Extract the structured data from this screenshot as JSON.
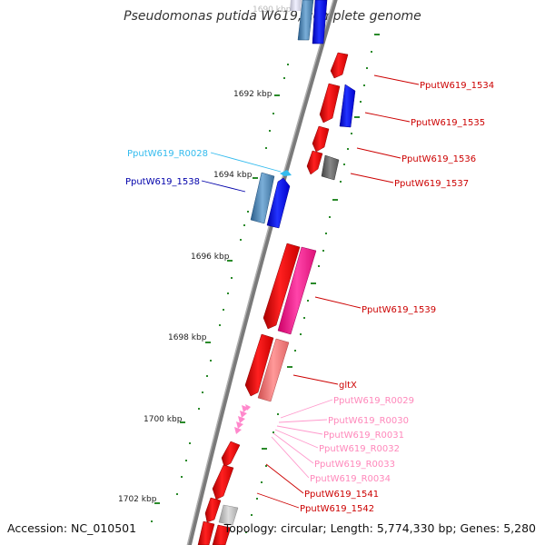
{
  "title": "Pseudomonas putida W619, complete genome",
  "footer": {
    "accession": "Accession: NC_010501",
    "topology": "Topology: circular; Length: 5,774,330 bp; Genes: 5,280"
  },
  "colors": {
    "backbone": "#808080",
    "cds_forward": "#0000ff",
    "cds_reverse": "#ff0000",
    "rna": "#ff99cc",
    "tick": "#228b22"
  },
  "scale_labels": [
    {
      "text": "1690 kbp",
      "faded": true
    },
    {
      "text": "1692 kbp"
    },
    {
      "text": "1694 kbp"
    },
    {
      "text": "1696 kbp"
    },
    {
      "text": "1698 kbp"
    },
    {
      "text": "1700 kbp"
    },
    {
      "text": "1702 kbp"
    }
  ],
  "features": [
    {
      "id": "PputW619_1534",
      "strand": "reverse",
      "color": "#cc0000"
    },
    {
      "id": "PputW619_1535",
      "strand": "reverse",
      "color": "#cc0000"
    },
    {
      "id": "PputW619_1536",
      "strand": "reverse",
      "color": "#cc0000"
    },
    {
      "id": "PputW619_1537",
      "strand": "reverse",
      "color": "#cc0000"
    },
    {
      "id": "PputW619_R0028",
      "strand": "forward",
      "color": "#33bbee"
    },
    {
      "id": "PputW619_1538",
      "strand": "forward",
      "color": "#0000aa"
    },
    {
      "id": "PputW619_1539",
      "strand": "reverse",
      "color": "#cc0000"
    },
    {
      "id": "gltX",
      "strand": "reverse",
      "color": "#cc0000"
    },
    {
      "id": "PputW619_R0029",
      "strand": "reverse",
      "color": "#ff88bb"
    },
    {
      "id": "PputW619_R0030",
      "strand": "reverse",
      "color": "#ff88bb"
    },
    {
      "id": "PputW619_R0031",
      "strand": "reverse",
      "color": "#ff88bb"
    },
    {
      "id": "PputW619_R0032",
      "strand": "reverse",
      "color": "#ff88bb"
    },
    {
      "id": "PputW619_R0033",
      "strand": "reverse",
      "color": "#ff88bb"
    },
    {
      "id": "PputW619_R0034",
      "strand": "reverse",
      "color": "#ff88bb"
    },
    {
      "id": "PputW619_1541",
      "strand": "reverse",
      "color": "#cc0000"
    },
    {
      "id": "PputW619_1542",
      "strand": "reverse",
      "color": "#cc0000"
    }
  ]
}
